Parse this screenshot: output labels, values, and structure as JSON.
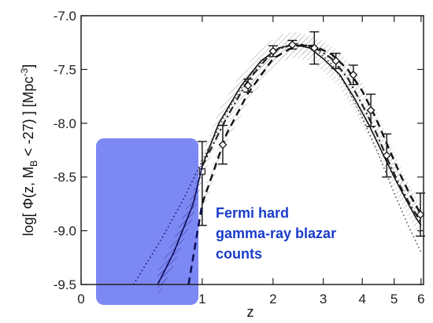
{
  "chart_data": {
    "type": "line",
    "title": "",
    "xlabel": "z",
    "ylabel": "log[ Φ(z, M",
    "ylabel_sub": "B",
    "ylabel_rest": " < -27) ]  [Mpc",
    "ylabel_sup": "-3",
    "ylabel_end": "]",
    "xlim": [
      0,
      6.1
    ],
    "ylim": [
      -9.5,
      -7.0
    ],
    "x_scale": "log(1+z)",
    "grid": false,
    "x_ticks": [
      0,
      1,
      2,
      3,
      4,
      5,
      6
    ],
    "x_tick_labels": [
      "0",
      "1",
      "2",
      "3",
      "4",
      "5",
      "6"
    ],
    "y_ticks": [
      -7.0,
      -7.5,
      -8.0,
      -8.5,
      -9.0,
      -9.5
    ],
    "y_tick_labels": [
      "-7.0",
      "-7.5",
      "-8.0",
      "-8.5",
      "-9.0",
      "-9.5"
    ],
    "series": [
      {
        "style": "data-diamond",
        "points": [
          {
            "x": 1.25,
            "y": -8.2,
            "yerr": [
              0.18,
              0.18
            ]
          },
          {
            "x": 1.6,
            "y": -7.65,
            "yerr": [
              0.06,
              0.06
            ]
          },
          {
            "x": 2.0,
            "y": -7.33,
            "yerr": [
              0.05,
              0.05
            ]
          },
          {
            "x": 2.35,
            "y": -7.27,
            "yerr": [
              0.04,
              0.04
            ]
          },
          {
            "x": 2.8,
            "y": -7.3,
            "yerr": [
              0.15,
              0.15
            ]
          },
          {
            "x": 3.3,
            "y": -7.42,
            "yerr": [
              0.07,
              0.07
            ]
          },
          {
            "x": 3.75,
            "y": -7.55,
            "yerr": [
              0.09,
              0.09
            ]
          },
          {
            "x": 4.25,
            "y": -7.88,
            "yerr": [
              0.15,
              0.15
            ]
          },
          {
            "x": 4.75,
            "y": -8.3,
            "yerr": [
              0.2,
              0.2
            ]
          },
          {
            "x": 6.05,
            "y": -8.85,
            "yerr": [
              0.2,
              0.2
            ]
          }
        ]
      },
      {
        "style": "data-square",
        "points": [
          {
            "x": 1.0,
            "y": -8.45,
            "yerr": [
              0.5,
              0.28
            ]
          }
        ]
      },
      {
        "style": "dotted",
        "x": [
          0.35,
          0.6,
          0.8,
          1.0,
          1.3,
          1.6,
          1.9,
          2.2,
          2.5,
          2.8,
          3.2,
          3.6,
          4.0,
          4.5,
          5.0,
          5.5,
          6.0
        ],
        "y": [
          -9.5,
          -9.05,
          -8.7,
          -8.35,
          -7.9,
          -7.58,
          -7.38,
          -7.28,
          -7.26,
          -7.3,
          -7.45,
          -7.68,
          -7.95,
          -8.3,
          -8.65,
          -8.95,
          -9.2
        ]
      },
      {
        "style": "solid",
        "x": [
          0.55,
          0.7,
          0.9,
          1.0,
          1.2,
          1.5,
          1.8,
          2.1,
          2.4,
          2.7,
          3.0,
          3.4,
          3.8,
          4.2,
          4.6,
          5.0,
          5.4,
          5.8,
          6.0
        ],
        "y": [
          -9.5,
          -9.2,
          -8.75,
          -8.4,
          -8.0,
          -7.65,
          -7.42,
          -7.3,
          -7.27,
          -7.3,
          -7.4,
          -7.55,
          -7.78,
          -8.02,
          -8.27,
          -8.5,
          -8.7,
          -8.88,
          -8.95
        ]
      },
      {
        "style": "dash-dot",
        "x": [
          1.0,
          1.3,
          1.6,
          2.0,
          2.4,
          2.8,
          3.2,
          3.6,
          4.0,
          4.4,
          4.8,
          5.2,
          5.6,
          6.0
        ],
        "y": [
          -8.4,
          -7.95,
          -7.6,
          -7.33,
          -7.26,
          -7.29,
          -7.4,
          -7.58,
          -7.83,
          -8.08,
          -8.35,
          -8.58,
          -8.77,
          -8.92
        ]
      },
      {
        "style": "dashed",
        "x": [
          0.85,
          1.0,
          1.3,
          1.6,
          2.0,
          2.4,
          2.8,
          3.2,
          3.6,
          4.0,
          4.4,
          4.8,
          5.2,
          5.6,
          6.0
        ],
        "y": [
          -9.5,
          -8.75,
          -8.1,
          -7.72,
          -7.4,
          -7.28,
          -7.28,
          -7.36,
          -7.5,
          -7.7,
          -7.95,
          -8.22,
          -8.47,
          -8.68,
          -8.85
        ]
      }
    ],
    "annotation": {
      "lines": [
        "Fermi hard",
        "gamma-ray blazar",
        "counts"
      ],
      "shade_color": "#6f7cf0"
    }
  }
}
